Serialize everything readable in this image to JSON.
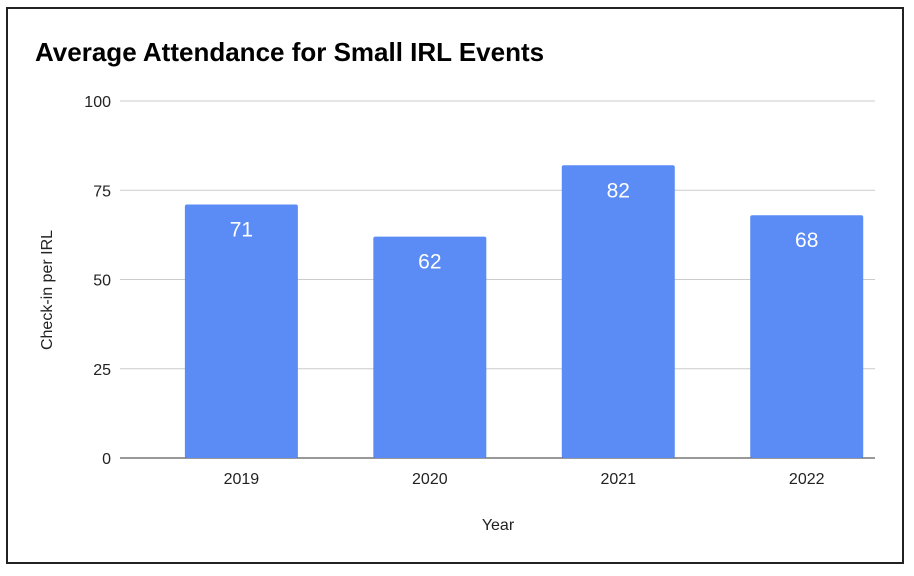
{
  "chart_data": {
    "type": "bar",
    "title": "Average Attendance for Small IRL Events",
    "xlabel": "Year",
    "ylabel": "Check-in per IRL",
    "categories": [
      "2019",
      "2020",
      "2021",
      "2022"
    ],
    "values": [
      71,
      62,
      82,
      68
    ],
    "data_labels": [
      "71",
      "62",
      "82",
      "68"
    ],
    "ylim": [
      0,
      100
    ],
    "yticks": [
      "0",
      "25",
      "50",
      "75",
      "100"
    ],
    "grid": true,
    "legend": "none",
    "bar_color": "#5b8cf5"
  }
}
